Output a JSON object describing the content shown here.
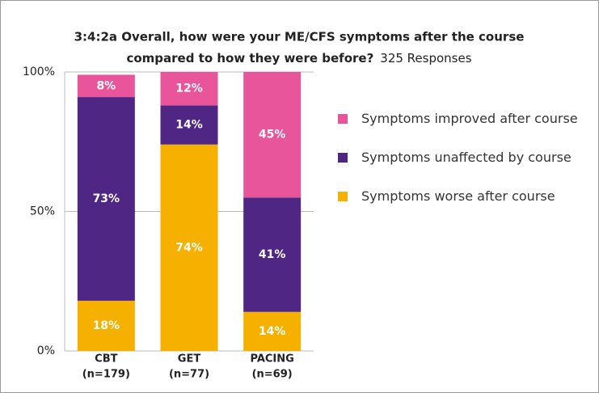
{
  "chart_data": {
    "type": "stacked_bar_100",
    "title_lines": [
      "3:4:2a  Overall, how were your ME/CFS symptoms after the course",
      "compared to how they were before?"
    ],
    "subtitle": "325 Responses",
    "categories": [
      "CBT",
      "GET",
      "PACING"
    ],
    "category_notes": [
      "(n=179)",
      "(n=77)",
      "(n=69)"
    ],
    "series": [
      {
        "name": "Symptoms improved after course",
        "color": "#e8559a",
        "values": [
          8,
          12,
          45
        ],
        "value_labels": [
          "8%",
          "12%",
          "45%"
        ]
      },
      {
        "name": "Symptoms unaffected by course",
        "color": "#4f2683",
        "values": [
          73,
          14,
          41
        ],
        "value_labels": [
          "73%",
          "14%",
          "41%"
        ]
      },
      {
        "name": "Symptoms worse after course",
        "color": "#f5b000",
        "values": [
          18,
          74,
          14
        ],
        "value_labels": [
          "18%",
          "74%",
          "14%"
        ]
      }
    ],
    "ylim": [
      0,
      100
    ],
    "yticks": [
      {
        "value": 0,
        "label": "0%"
      },
      {
        "value": 50,
        "label": "50%"
      },
      {
        "value": 100,
        "label": "100%"
      }
    ],
    "grid": true,
    "legend": "right"
  }
}
